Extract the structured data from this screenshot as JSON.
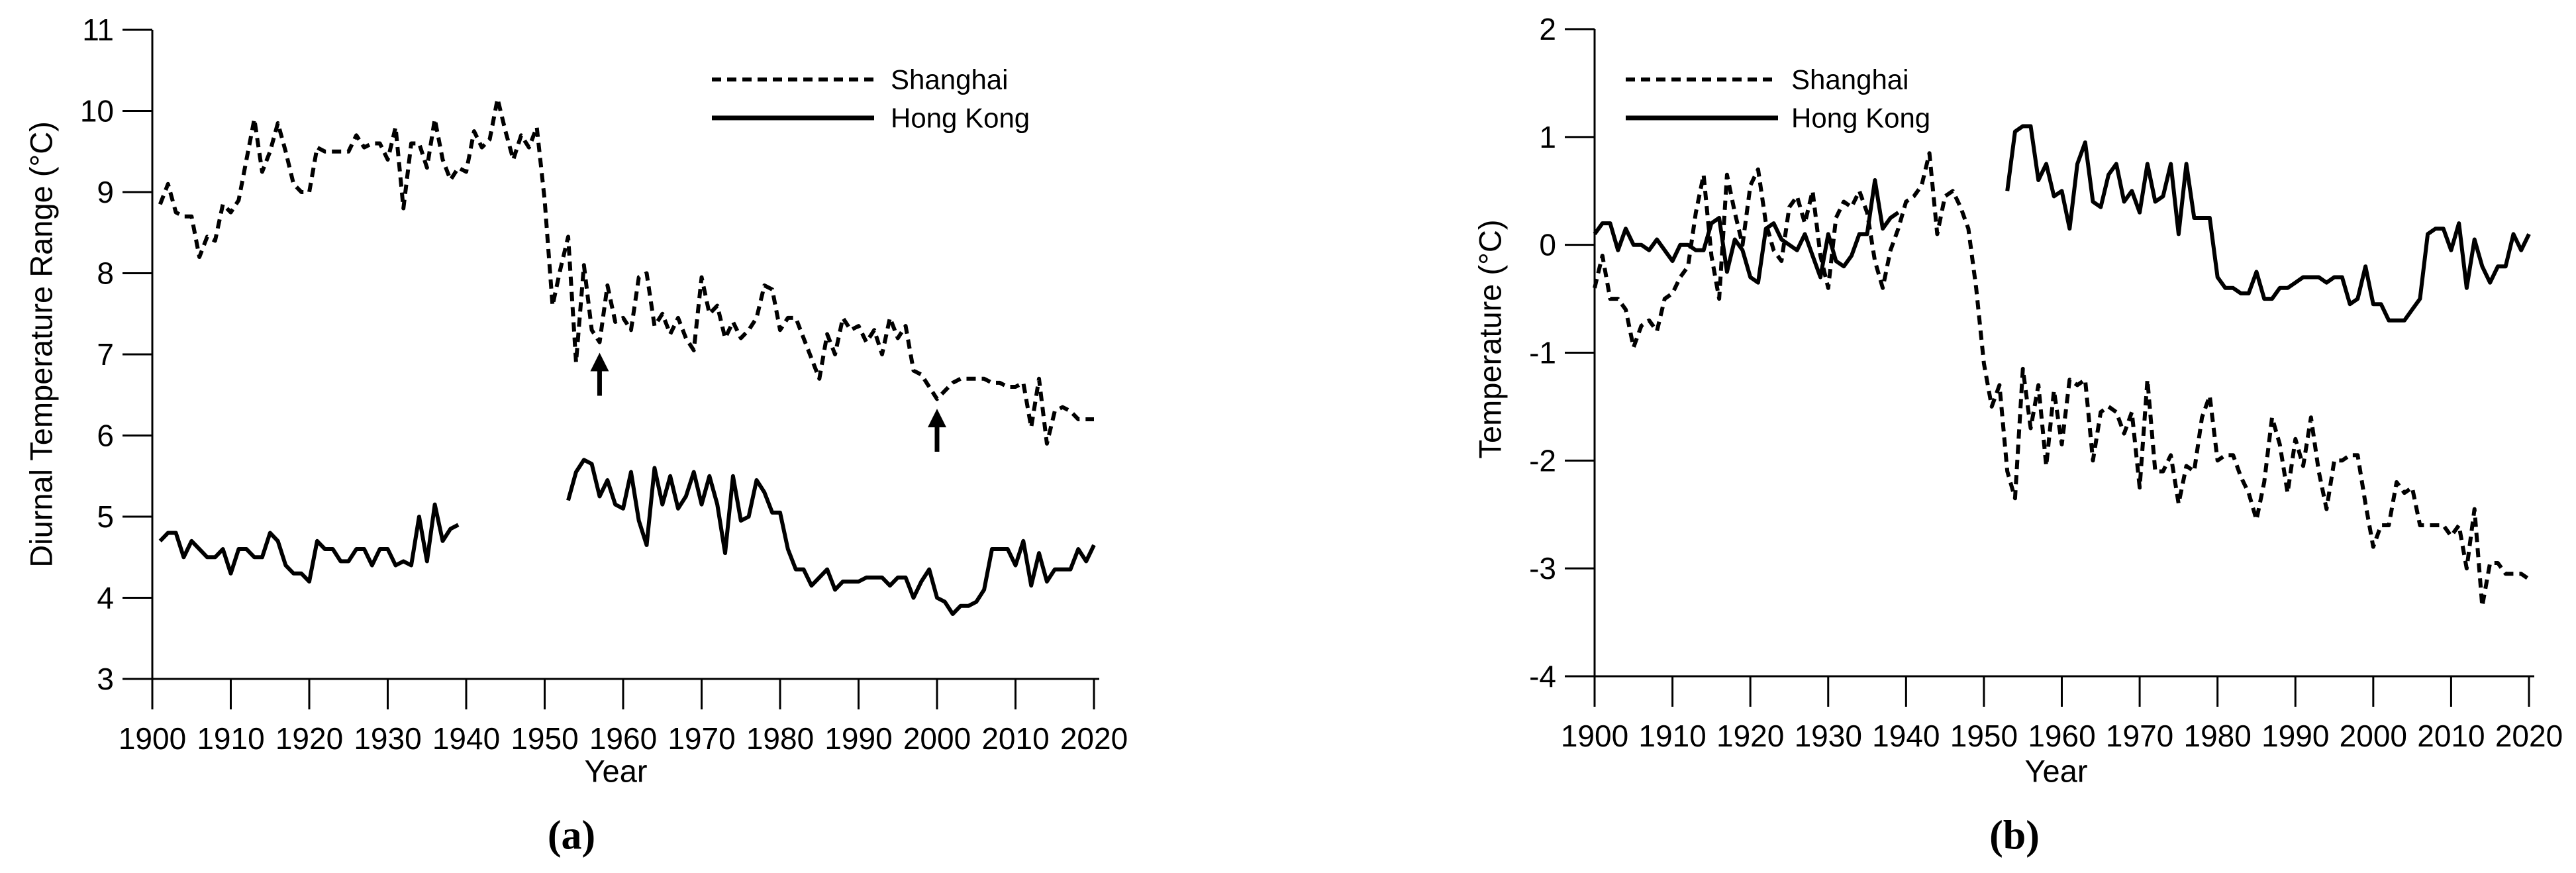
{
  "figure": {
    "background": "#ffffff",
    "ink_color": "#000000",
    "description_labels": {
      "left_caption": "(a)",
      "right_caption": "(b)"
    }
  },
  "chart_data": [
    {
      "id": "a",
      "type": "line",
      "caption": "(a)",
      "xlabel": "Year",
      "ylabel": "Diurnal Temperature Range (°C)",
      "xlim": [
        1900,
        2020
      ],
      "ylim": [
        3,
        11
      ],
      "xticks": [
        1900,
        1910,
        1920,
        1930,
        1940,
        1950,
        1960,
        1970,
        1980,
        1990,
        2000,
        2010,
        2020
      ],
      "yticks": [
        3,
        4,
        5,
        6,
        7,
        8,
        9,
        10,
        11
      ],
      "grid": false,
      "legend_position": "top-center-inside",
      "legend": [
        {
          "label": "Shanghai",
          "style": "dashed"
        },
        {
          "label": "Hong Kong",
          "style": "solid"
        }
      ],
      "x": [
        1901,
        1902,
        1903,
        1904,
        1905,
        1906,
        1907,
        1908,
        1909,
        1910,
        1911,
        1912,
        1913,
        1914,
        1915,
        1916,
        1917,
        1918,
        1919,
        1920,
        1921,
        1922,
        1923,
        1924,
        1925,
        1926,
        1927,
        1928,
        1929,
        1930,
        1931,
        1932,
        1933,
        1934,
        1935,
        1936,
        1937,
        1938,
        1939,
        1940,
        1941,
        1942,
        1943,
        1944,
        1945,
        1946,
        1947,
        1948,
        1949,
        1950,
        1951,
        1952,
        1953,
        1954,
        1955,
        1956,
        1957,
        1958,
        1959,
        1960,
        1961,
        1962,
        1963,
        1964,
        1965,
        1966,
        1967,
        1968,
        1969,
        1970,
        1971,
        1972,
        1973,
        1974,
        1975,
        1976,
        1977,
        1978,
        1979,
        1980,
        1981,
        1982,
        1983,
        1984,
        1985,
        1986,
        1987,
        1988,
        1989,
        1990,
        1991,
        1992,
        1993,
        1994,
        1995,
        1996,
        1997,
        1998,
        1999,
        2000,
        2001,
        2002,
        2003,
        2004,
        2005,
        2006,
        2007,
        2008,
        2009,
        2010,
        2011,
        2012,
        2013,
        2014,
        2015,
        2016,
        2017,
        2018,
        2019,
        2020
      ],
      "series": [
        {
          "name": "Shanghai",
          "style": "dashed",
          "values": [
            8.85,
            9.1,
            8.75,
            8.7,
            8.7,
            8.2,
            8.45,
            8.4,
            8.85,
            8.75,
            8.9,
            9.4,
            9.9,
            9.25,
            9.5,
            9.85,
            9.5,
            9.1,
            9.0,
            9.0,
            9.55,
            9.5,
            9.5,
            9.5,
            9.5,
            9.7,
            9.55,
            9.6,
            9.6,
            9.4,
            9.8,
            8.8,
            9.6,
            9.6,
            9.3,
            9.9,
            9.4,
            9.15,
            9.3,
            9.25,
            9.75,
            9.55,
            9.65,
            10.15,
            9.75,
            9.4,
            9.7,
            9.55,
            9.8,
            8.9,
            7.6,
            8.05,
            8.45,
            6.9,
            8.1,
            7.3,
            7.15,
            7.85,
            7.4,
            7.45,
            7.3,
            7.95,
            8.0,
            7.35,
            7.5,
            7.25,
            7.45,
            7.2,
            7.05,
            7.95,
            7.5,
            7.6,
            7.2,
            7.4,
            7.2,
            7.3,
            7.45,
            7.85,
            7.8,
            7.3,
            7.45,
            7.45,
            7.2,
            6.95,
            6.7,
            7.25,
            7.0,
            7.45,
            7.3,
            7.35,
            7.15,
            7.3,
            7.0,
            7.45,
            7.2,
            7.35,
            6.8,
            6.75,
            6.6,
            6.45,
            6.55,
            6.65,
            6.7,
            6.7,
            6.7,
            6.7,
            6.65,
            6.65,
            6.6,
            6.6,
            6.65,
            6.1,
            6.7,
            5.9,
            6.3,
            6.35,
            6.3,
            6.2,
            6.2,
            6.2
          ]
        },
        {
          "name": "Hong Kong",
          "style": "solid",
          "values": [
            4.7,
            4.8,
            4.8,
            4.5,
            4.7,
            4.6,
            4.5,
            4.5,
            4.6,
            4.3,
            4.6,
            4.6,
            4.5,
            4.5,
            4.8,
            4.7,
            4.4,
            4.3,
            4.3,
            4.2,
            4.7,
            4.6,
            4.6,
            4.45,
            4.45,
            4.6,
            4.6,
            4.4,
            4.6,
            4.6,
            4.4,
            4.45,
            4.4,
            5.0,
            4.45,
            5.15,
            4.7,
            4.85,
            4.9,
            null,
            null,
            null,
            null,
            null,
            null,
            null,
            null,
            null,
            null,
            null,
            null,
            null,
            5.2,
            5.55,
            5.7,
            5.65,
            5.25,
            5.45,
            5.15,
            5.1,
            5.55,
            4.95,
            4.65,
            5.6,
            5.15,
            5.5,
            5.1,
            5.25,
            5.55,
            5.15,
            5.5,
            5.15,
            4.55,
            5.5,
            4.95,
            5.0,
            5.45,
            5.3,
            5.05,
            5.05,
            4.6,
            4.35,
            4.35,
            4.15,
            4.25,
            4.35,
            4.1,
            4.2,
            4.2,
            4.2,
            4.25,
            4.25,
            4.25,
            4.15,
            4.25,
            4.25,
            4.0,
            4.2,
            4.35,
            4.0,
            3.95,
            3.8,
            3.9,
            3.9,
            3.95,
            4.1,
            4.6,
            4.6,
            4.6,
            4.4,
            4.7,
            4.15,
            4.55,
            4.2,
            4.35,
            4.35,
            4.35,
            4.6,
            4.45,
            4.65
          ]
        }
      ],
      "annotations": [
        {
          "type": "up-arrow",
          "year": 1957,
          "tip_value": 7.02,
          "tail_value": 6.49
        },
        {
          "type": "up-arrow",
          "year": 2000,
          "tip_value": 6.33,
          "tail_value": 5.8
        }
      ]
    },
    {
      "id": "b",
      "type": "line",
      "caption": "(b)",
      "xlabel": "Year",
      "ylabel": "Temperature (°C)",
      "xlim": [
        1900,
        2020
      ],
      "ylim": [
        -4,
        2
      ],
      "xticks": [
        1900,
        1910,
        1920,
        1930,
        1940,
        1950,
        1960,
        1970,
        1980,
        1990,
        2000,
        2010,
        2020
      ],
      "yticks": [
        -4,
        -3,
        -2,
        -1,
        0,
        1,
        2
      ],
      "grid": false,
      "legend_position": "top-left-inside",
      "legend": [
        {
          "label": "Shanghai",
          "style": "dashed"
        },
        {
          "label": "Hong Kong",
          "style": "solid"
        }
      ],
      "x": [
        1900,
        1901,
        1902,
        1903,
        1904,
        1905,
        1906,
        1907,
        1908,
        1909,
        1910,
        1911,
        1912,
        1913,
        1914,
        1915,
        1916,
        1917,
        1918,
        1919,
        1920,
        1921,
        1922,
        1923,
        1924,
        1925,
        1926,
        1927,
        1928,
        1929,
        1930,
        1931,
        1932,
        1933,
        1934,
        1935,
        1936,
        1937,
        1938,
        1939,
        1940,
        1941,
        1942,
        1943,
        1944,
        1945,
        1946,
        1947,
        1948,
        1949,
        1950,
        1951,
        1952,
        1953,
        1954,
        1955,
        1956,
        1957,
        1958,
        1959,
        1960,
        1961,
        1962,
        1963,
        1964,
        1965,
        1966,
        1967,
        1968,
        1969,
        1970,
        1971,
        1972,
        1973,
        1974,
        1975,
        1976,
        1977,
        1978,
        1979,
        1980,
        1981,
        1982,
        1983,
        1984,
        1985,
        1986,
        1987,
        1988,
        1989,
        1990,
        1991,
        1992,
        1993,
        1994,
        1995,
        1996,
        1997,
        1998,
        1999,
        2000,
        2001,
        2002,
        2003,
        2004,
        2005,
        2006,
        2007,
        2008,
        2009,
        2010,
        2011,
        2012,
        2013,
        2014,
        2015,
        2016,
        2017,
        2018,
        2019,
        2020
      ],
      "series": [
        {
          "name": "Shanghai",
          "style": "dashed",
          "values": [
            -0.4,
            -0.1,
            -0.5,
            -0.5,
            -0.6,
            -0.95,
            -0.75,
            -0.7,
            -0.8,
            -0.5,
            -0.45,
            -0.3,
            -0.2,
            0.3,
            0.65,
            -0.1,
            -0.5,
            0.65,
            0.3,
            0.0,
            0.55,
            0.7,
            0.2,
            -0.05,
            -0.15,
            0.35,
            0.45,
            0.2,
            0.5,
            -0.1,
            -0.4,
            0.25,
            0.4,
            0.35,
            0.5,
            0.3,
            -0.15,
            -0.4,
            -0.05,
            0.15,
            0.4,
            0.45,
            0.55,
            0.85,
            0.1,
            0.45,
            0.5,
            0.35,
            0.15,
            -0.4,
            -1.1,
            -1.5,
            -1.3,
            -2.1,
            -2.35,
            -1.15,
            -1.7,
            -1.3,
            -2.05,
            -1.35,
            -1.85,
            -1.25,
            -1.3,
            -1.25,
            -2.0,
            -1.55,
            -1.5,
            -1.55,
            -1.75,
            -1.55,
            -2.25,
            -1.25,
            -2.1,
            -2.1,
            -1.95,
            -2.4,
            -2.05,
            -2.1,
            -1.6,
            -1.4,
            -2.0,
            -1.95,
            -1.95,
            -2.15,
            -2.3,
            -2.55,
            -2.2,
            -1.6,
            -1.85,
            -2.3,
            -1.8,
            -2.05,
            -1.6,
            -2.1,
            -2.45,
            -2.0,
            -2.0,
            -1.95,
            -1.95,
            -2.4,
            -2.8,
            -2.6,
            -2.6,
            -2.2,
            -2.3,
            -2.25,
            -2.6,
            -2.6,
            -2.6,
            -2.6,
            -2.7,
            -2.6,
            -3.0,
            -2.45,
            -3.35,
            -2.95,
            -2.95,
            -3.05,
            -3.05,
            -3.05,
            -3.1
          ]
        },
        {
          "name": "Hong Kong",
          "style": "solid",
          "values": [
            0.1,
            0.2,
            0.2,
            -0.05,
            0.15,
            0.0,
            0.0,
            -0.05,
            0.05,
            -0.05,
            -0.15,
            0.0,
            0.0,
            -0.05,
            -0.05,
            0.2,
            0.25,
            -0.25,
            0.05,
            -0.05,
            -0.3,
            -0.35,
            0.15,
            0.2,
            0.05,
            0.0,
            -0.05,
            0.1,
            -0.1,
            -0.3,
            0.1,
            -0.15,
            -0.2,
            -0.1,
            0.1,
            0.1,
            0.6,
            0.15,
            0.25,
            0.3,
            null,
            null,
            null,
            null,
            null,
            null,
            null,
            null,
            null,
            null,
            null,
            null,
            null,
            0.5,
            1.05,
            1.1,
            1.1,
            0.6,
            0.75,
            0.45,
            0.5,
            0.15,
            0.75,
            0.95,
            0.4,
            0.35,
            0.65,
            0.75,
            0.4,
            0.5,
            0.3,
            0.75,
            0.4,
            0.45,
            0.75,
            0.1,
            0.75,
            0.25,
            0.25,
            0.25,
            -0.3,
            -0.4,
            -0.4,
            -0.45,
            -0.45,
            -0.25,
            -0.5,
            -0.5,
            -0.4,
            -0.4,
            -0.35,
            -0.3,
            -0.3,
            -0.3,
            -0.35,
            -0.3,
            -0.3,
            -0.55,
            -0.5,
            -0.2,
            -0.55,
            -0.55,
            -0.7,
            -0.7,
            -0.7,
            -0.6,
            -0.5,
            0.1,
            0.15,
            0.15,
            -0.05,
            0.2,
            -0.4,
            0.05,
            -0.2,
            -0.35,
            -0.2,
            -0.2,
            0.1,
            -0.05,
            0.1
          ]
        }
      ],
      "annotations": []
    }
  ]
}
